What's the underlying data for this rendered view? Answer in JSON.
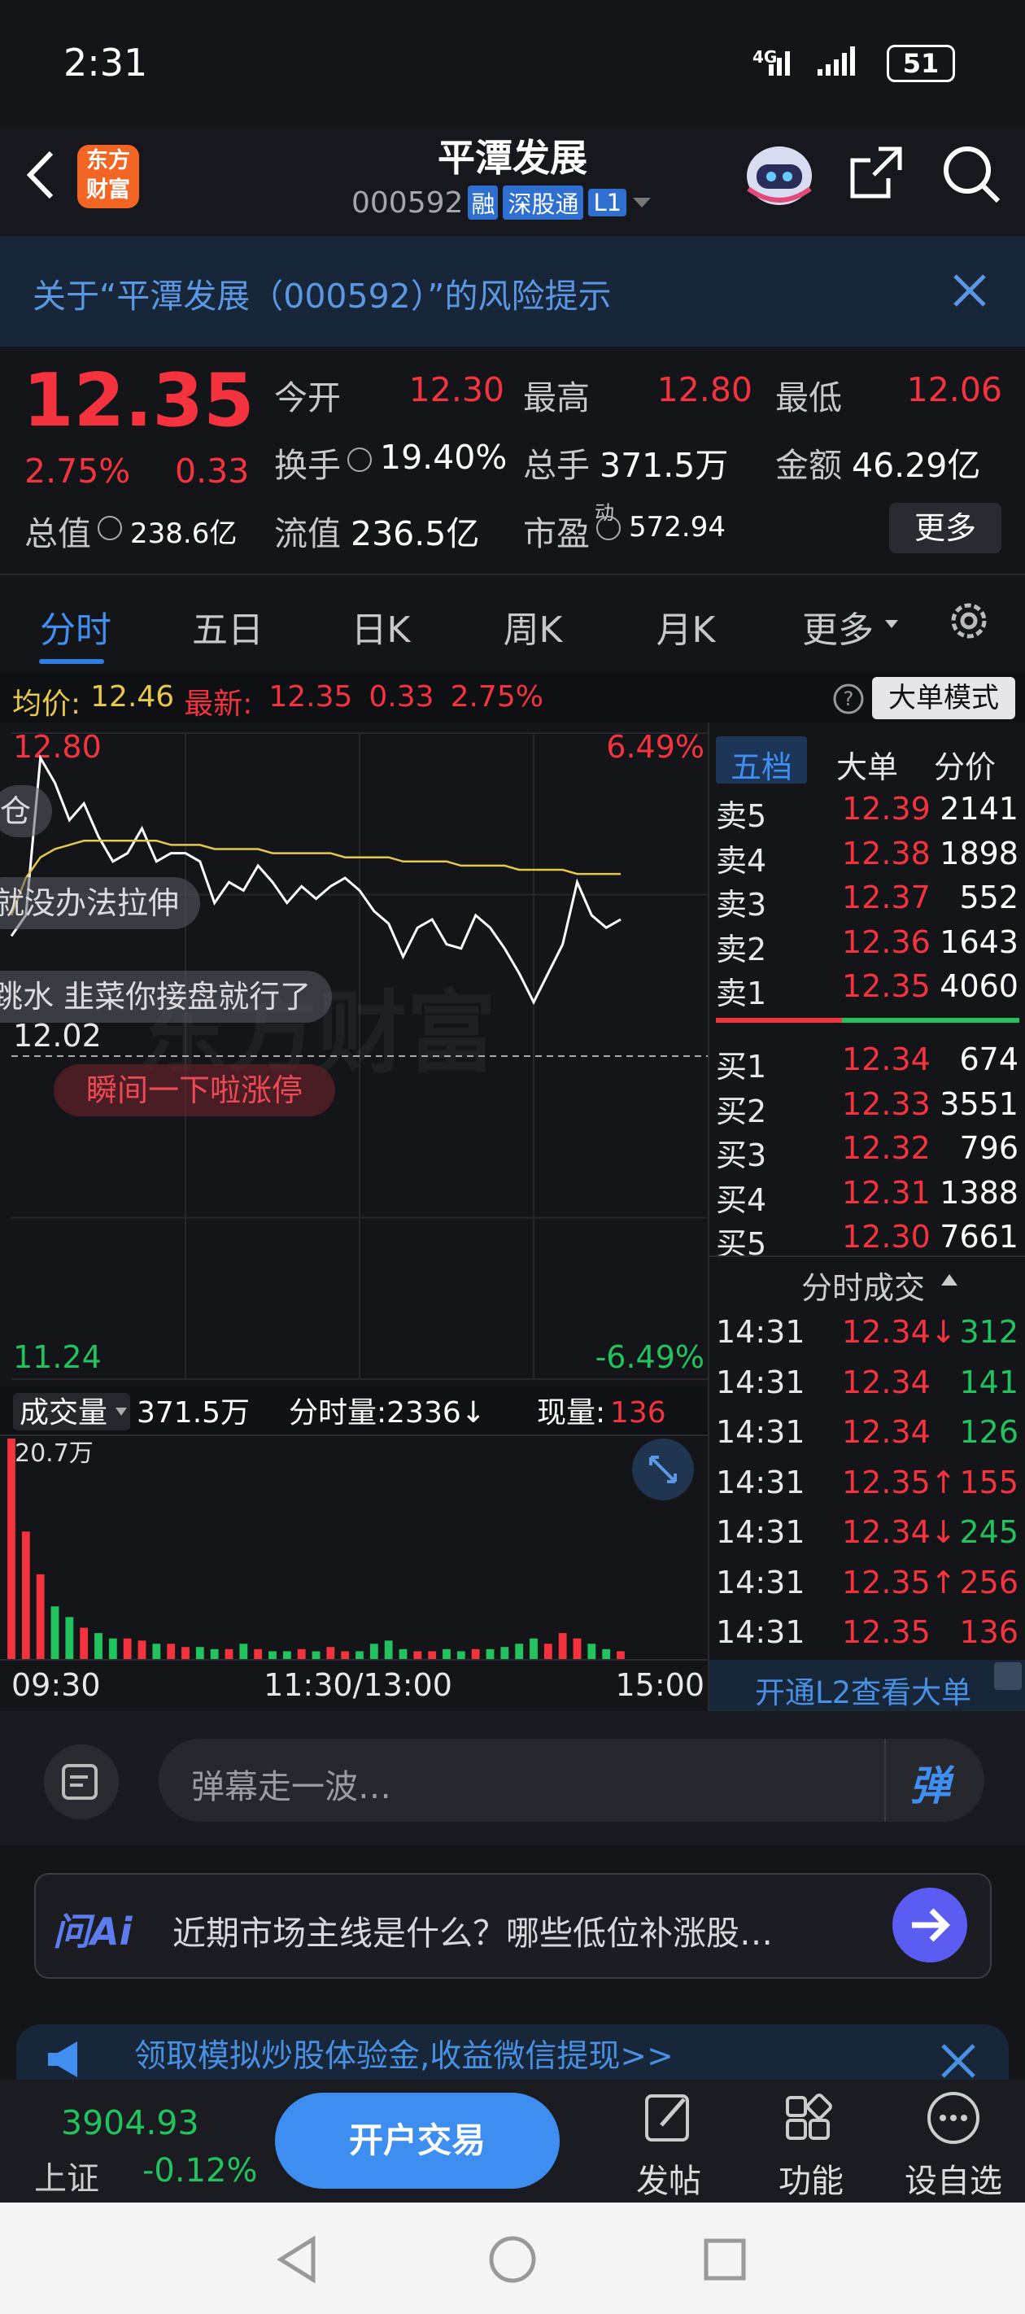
{
  "status": {
    "time": "2:31",
    "network": "4G",
    "battery": "51"
  },
  "header": {
    "logo": [
      "东方",
      "财富"
    ],
    "title": "平潭发展",
    "code": "000592",
    "badges": [
      "融",
      "深股通",
      "L1"
    ]
  },
  "risk_banner": "关于“平潭发展（000592）”的风险提示",
  "quote": {
    "price": "12.35",
    "change_pct": "2.75%",
    "change": "0.33",
    "rows": [
      [
        {
          "label": "今开",
          "value": "12.30"
        },
        {
          "label": "最高",
          "value": "12.80"
        },
        {
          "label": "最低",
          "value": "12.06"
        }
      ],
      [
        {
          "label": "换手",
          "value": "19.40%"
        },
        {
          "label": "总手",
          "value": "371.5万"
        },
        {
          "label": "金额",
          "value": "46.29亿"
        }
      ],
      [
        {
          "label": "总值",
          "value": "238.6亿"
        },
        {
          "label": "流值",
          "value": "236.5亿"
        },
        {
          "label": "市盈",
          "value": "572.94",
          "sup": "动"
        }
      ]
    ],
    "more": "更多"
  },
  "tabs": [
    "分时",
    "五日",
    "日K",
    "周K",
    "月K",
    "更多"
  ],
  "info": {
    "avg_label": "均价:",
    "avg": "12.46",
    "last_label": "最新:",
    "last": "12.35",
    "change": "0.33",
    "pct": "2.75%",
    "mode": "大单模式"
  },
  "chart": {
    "type": "line",
    "watermark": "东方财富",
    "ylim": [
      11.24,
      12.8
    ],
    "yticks": [
      {
        "value": 12.8,
        "label": "12.80"
      },
      12.02,
      11.24
    ],
    "y2lim": [
      -6.49,
      6.49
    ],
    "y2ticks": [
      {
        "value": 6.49,
        "label": "6.49%"
      },
      {
        "value": -6.49,
        "label": "-6.49%"
      }
    ],
    "xlabels": [
      "09:30",
      "11:30/13:00",
      "15:00"
    ],
    "series": [
      {
        "color": "#ffffff",
        "values": [
          12.31,
          12.36,
          12.74,
          12.68,
          12.59,
          12.63,
          12.55,
          12.49,
          12.51,
          12.57,
          12.49,
          12.51,
          12.51,
          12.49,
          12.39,
          12.44,
          12.42,
          12.48,
          12.44,
          12.39,
          12.43,
          12.4,
          12.43,
          12.45,
          12.42,
          12.37,
          12.34,
          12.26,
          12.33,
          12.35,
          12.29,
          12.28,
          12.36,
          12.33,
          12.28,
          12.22,
          12.15,
          12.22,
          12.29,
          12.44,
          12.36,
          12.33,
          12.35
        ]
      },
      {
        "color": "#e6c84a",
        "values": [
          12.36,
          12.45,
          12.5,
          12.52,
          12.53,
          12.54,
          12.54,
          12.54,
          12.54,
          12.54,
          12.54,
          12.53,
          12.53,
          12.53,
          12.52,
          12.52,
          12.52,
          12.52,
          12.51,
          12.51,
          12.51,
          12.51,
          12.51,
          12.5,
          12.5,
          12.5,
          12.5,
          12.49,
          12.49,
          12.49,
          12.49,
          12.48,
          12.48,
          12.48,
          12.48,
          12.47,
          12.47,
          12.47,
          12.47,
          12.46,
          12.46,
          12.46,
          12.46
        ]
      }
    ]
  },
  "volume": {
    "type": "bar",
    "label": "成交量",
    "total": "371.5万",
    "minute": "分时量:2336↓",
    "now_label": "现量:",
    "now": "136",
    "ylim": [
      0,
      20.7
    ],
    "yticks": [
      {
        "value": 20.7,
        "label": "20.7万"
      }
    ],
    "values": [
      20.7,
      12,
      8,
      5,
      4,
      3,
      2.5,
      2,
      2,
      1.8,
      1.5,
      1.5,
      1.2,
      1.2,
      1,
      1,
      1.5,
      1,
      0.8,
      0.8,
      1,
      0.8,
      1.2,
      0.8,
      0.8,
      1.5,
      1.8,
      1,
      0.8,
      0.8,
      1,
      0.8,
      1,
      1,
      1.2,
      1.5,
      2,
      1.5,
      2.5,
      2,
      1.5,
      1,
      0.8
    ]
  },
  "orderbook": {
    "tabs": [
      "五档",
      "大单",
      "分价"
    ],
    "asks": [
      {
        "label": "卖5",
        "price": "12.39",
        "vol": "2141"
      },
      {
        "label": "卖4",
        "price": "12.38",
        "vol": "1898"
      },
      {
        "label": "卖3",
        "price": "12.37",
        "vol": "552"
      },
      {
        "label": "卖2",
        "price": "12.36",
        "vol": "1643"
      },
      {
        "label": "卖1",
        "price": "12.35",
        "vol": "4060"
      }
    ],
    "bids": [
      {
        "label": "买1",
        "price": "12.34",
        "vol": "674"
      },
      {
        "label": "买2",
        "price": "12.33",
        "vol": "3551"
      },
      {
        "label": "买3",
        "price": "12.32",
        "vol": "796"
      },
      {
        "label": "买4",
        "price": "12.31",
        "vol": "1388"
      },
      {
        "label": "买5",
        "price": "12.30",
        "vol": "7661"
      }
    ],
    "trades_title": "分时成交",
    "trades": [
      {
        "time": "14:31",
        "price": "12.34↓",
        "vol": "312",
        "color": "#22c35e"
      },
      {
        "time": "14:31",
        "price": "12.34",
        "vol": "141",
        "color": "#22c35e"
      },
      {
        "time": "14:31",
        "price": "12.34",
        "vol": "126",
        "color": "#22c35e"
      },
      {
        "time": "14:31",
        "price": "12.35↑",
        "vol": "155",
        "color": "#f5333f"
      },
      {
        "time": "14:31",
        "price": "12.34↓",
        "vol": "245",
        "color": "#22c35e"
      },
      {
        "time": "14:31",
        "price": "12.35↑",
        "vol": "256",
        "color": "#f5333f"
      },
      {
        "time": "14:31",
        "price": "12.35",
        "vol": "136",
        "color": "#f5333f"
      }
    ],
    "l2": "开通L2查看大单"
  },
  "danmaku": [
    "仓",
    "就没办法拉伸",
    "跳水 韭菜你接盘就行了",
    "瞬间一下啦涨停"
  ],
  "comment": {
    "placeholder": "弹幕走一波…",
    "button": "弹"
  },
  "ai": {
    "logo": "问Ai",
    "prompt": "近期市场主线是什么？哪些低位补涨股…"
  },
  "promo": "领取模拟炒股体验金,收益微信提现>>",
  "footer": {
    "index_value": "3904.93",
    "index_name": "上证",
    "index_change": "-0.12%",
    "trade": "开户交易",
    "actions": [
      "发帖",
      "功能",
      "设自选"
    ]
  }
}
